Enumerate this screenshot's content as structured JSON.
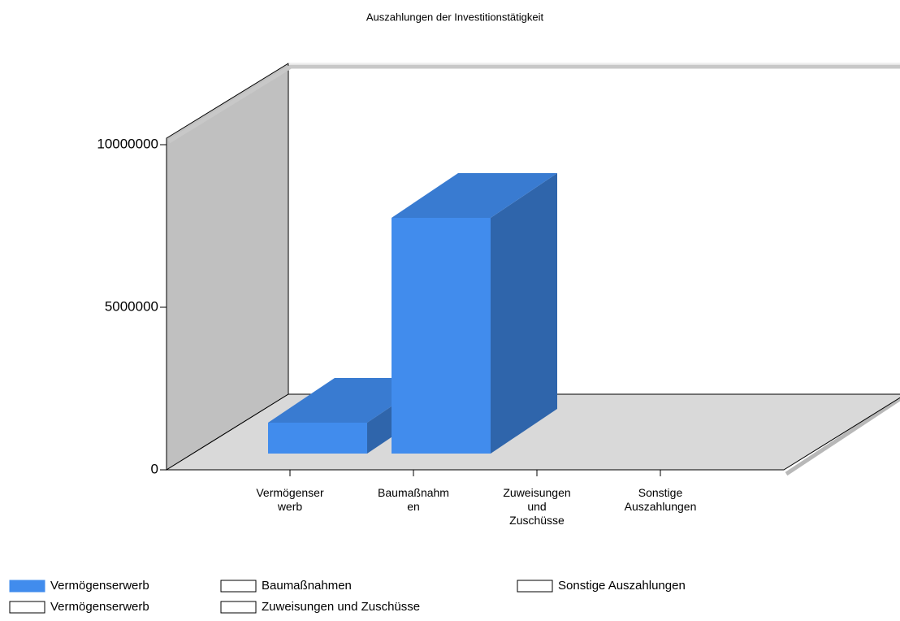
{
  "chart_data": {
    "type": "bar3d",
    "title": "Auszahlungen der Investitionstätigkeit",
    "categories": [
      "Vermögenser\nwerb",
      "Baumaßnahm\nen",
      "Zuweisungen\nund\nZuschüsse",
      "Sonstige\nAuszahlungen"
    ],
    "series": [
      {
        "name": "Vermögenserwerb",
        "color": "#418ced",
        "values": [
          950000,
          7250000,
          null,
          null
        ]
      },
      {
        "name": "Vermögenserwerb",
        "color": "#ffffff",
        "values": [
          null,
          null,
          null,
          null
        ]
      },
      {
        "name": "Baumaßnahmen",
        "color": "#ffffff",
        "values": [
          null,
          null,
          null,
          null
        ]
      },
      {
        "name": "Zuweisungen und Zuschüsse",
        "color": "#ffffff",
        "values": [
          null,
          null,
          null,
          null
        ]
      },
      {
        "name": "Sonstige Auszahlungen",
        "color": "#ffffff",
        "values": [
          null,
          null,
          null,
          null
        ]
      }
    ],
    "ylim": [
      0,
      10200000
    ],
    "yticks": [
      0,
      5000000,
      10000000
    ]
  }
}
